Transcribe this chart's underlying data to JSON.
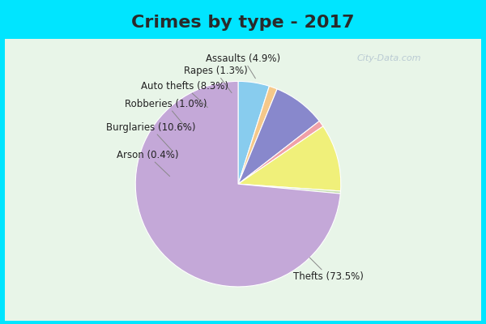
{
  "title": "Crimes by type - 2017",
  "slices": [
    {
      "label": "Thefts (73.5%)",
      "value": 73.5,
      "color": "#C4A8D8"
    },
    {
      "label": "Burglaries (10.6%)",
      "value": 10.6,
      "color": "#F0F07A"
    },
    {
      "label": "Auto thefts (8.3%)",
      "value": 8.3,
      "color": "#8888CC"
    },
    {
      "label": "Assaults (4.9%)",
      "value": 4.9,
      "color": "#88CCEE"
    },
    {
      "label": "Rapes (1.3%)",
      "value": 1.3,
      "color": "#F5C88A"
    },
    {
      "label": "Robberies (1.0%)",
      "value": 1.0,
      "color": "#F0A0A8"
    },
    {
      "label": "Arson (0.4%)",
      "value": 0.4,
      "color": "#C8E0B0"
    }
  ],
  "startangle": 90,
  "title_fontsize": 16,
  "label_fontsize": 8.5,
  "bg_outer": "#00E5FF",
  "bg_inner_top": "#E8F5E8",
  "bg_inner_bottom": "#D8EEE8",
  "watermark": "City-Data.com",
  "title_color": "#2A2A2A",
  "label_color": "#222222"
}
